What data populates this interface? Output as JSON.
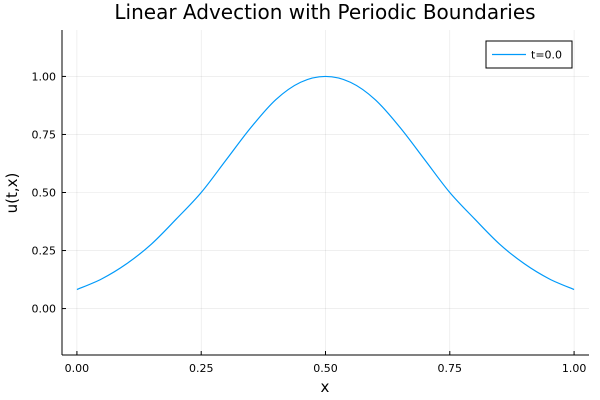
{
  "chart_data": {
    "type": "line",
    "title": "Linear Advection with Periodic Boundaries",
    "xlabel": "x",
    "ylabel": "u(t,x)",
    "xlim": [
      -0.03,
      1.03
    ],
    "ylim": [
      -0.2,
      1.2
    ],
    "xticks": [
      0.0,
      0.25,
      0.5,
      0.75,
      1.0
    ],
    "xtick_labels": [
      "0.00",
      "0.25",
      "0.50",
      "0.75",
      "1.00"
    ],
    "yticks": [
      0.0,
      0.25,
      0.5,
      0.75,
      1.0
    ],
    "ytick_labels": [
      "0.00",
      "0.25",
      "0.50",
      "0.75",
      "1.00"
    ],
    "grid": true,
    "legend_position": "top-right",
    "series": [
      {
        "name": "t=0.0",
        "color": "#009AFA",
        "x": [
          0.0,
          0.05,
          0.1,
          0.15,
          0.2,
          0.25,
          0.3,
          0.35,
          0.4,
          0.45,
          0.5,
          0.55,
          0.6,
          0.65,
          0.7,
          0.75,
          0.8,
          0.85,
          0.9,
          0.95,
          1.0
        ],
        "y": [
          0.082,
          0.128,
          0.193,
          0.278,
          0.386,
          0.5,
          0.64,
          0.78,
          0.9,
          0.975,
          1.0,
          0.975,
          0.9,
          0.78,
          0.64,
          0.5,
          0.386,
          0.278,
          0.193,
          0.128,
          0.082
        ]
      }
    ]
  }
}
